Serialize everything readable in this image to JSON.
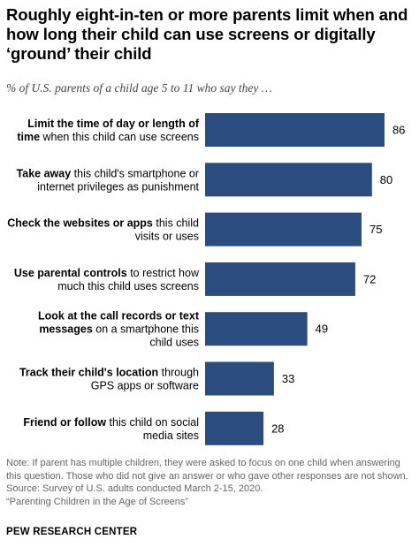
{
  "header": {
    "title_lines": [
      "Roughly eight-in-ten or more parents limit when and",
      "how long their child can use screens or digitally",
      "‘ground’ their child"
    ],
    "subtitle": "% of U.S. parents of a child age 5 to 11 who say they …"
  },
  "chart_data": {
    "type": "bar",
    "orientation": "horizontal",
    "bar_color": "#2b4c7e",
    "xlim": [
      0,
      100
    ],
    "categories": [
      [
        {
          "t": "Limit the time of day or length of",
          "b": true
        },
        {
          "t": "time",
          "b": true
        },
        {
          "t": " when this child can use screens",
          "b": false
        }
      ],
      [
        {
          "t": "Take away",
          "b": true
        },
        {
          "t": " this child's smartphone or",
          "b": false
        },
        {
          "t": "internet privileges as punishment",
          "b": false
        }
      ],
      [
        {
          "t": "Check the websites or apps",
          "b": true
        },
        {
          "t": " this child",
          "b": false
        },
        {
          "t": "visits or uses",
          "b": false
        }
      ],
      [
        {
          "t": "Use parental controls",
          "b": true
        },
        {
          "t": " to restrict how",
          "b": false
        },
        {
          "t": "much this child uses screens",
          "b": false
        }
      ],
      [
        {
          "t": "Look at the call records or text",
          "b": true
        },
        {
          "t": "messages",
          "b": true
        },
        {
          "t": " on a smartphone this",
          "b": false
        },
        {
          "t": "child uses",
          "b": false
        }
      ],
      [
        {
          "t": "Track their child's location",
          "b": true
        },
        {
          "t": " through",
          "b": false
        },
        {
          "t": "GPS apps or software",
          "b": false
        }
      ],
      [
        {
          "t": "Friend or follow",
          "b": true
        },
        {
          "t": " this child on social",
          "b": false
        },
        {
          "t": "media sites",
          "b": false
        }
      ]
    ],
    "category_line_breaks": [
      [
        1
      ],
      [
        2
      ],
      [
        2
      ],
      [
        2
      ],
      [
        1,
        3
      ],
      [
        2
      ],
      [
        2
      ]
    ],
    "values": [
      86,
      80,
      75,
      72,
      49,
      33,
      28
    ]
  },
  "notes": [
    "Note: If parent has multiple children, they were asked to focus on one child when answering",
    "this question. Those who did not give an answer or who gave other responses are not shown.",
    "Source: Survey of U.S. adults conducted March 2-15, 2020.",
    "“Parenting Children in the Age of Screens”"
  ],
  "brand": "PEW RESEARCH CENTER"
}
